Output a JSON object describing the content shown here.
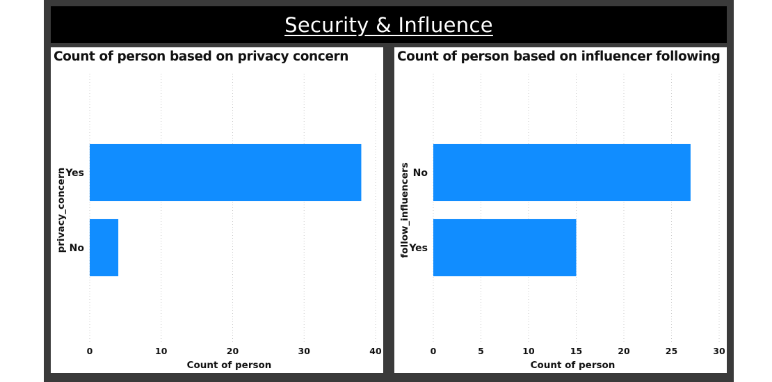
{
  "dashboard": {
    "title": "Security & Influence"
  },
  "colors": {
    "bar": "#118dff",
    "background": "#3a3a3a",
    "banner": "#000000",
    "gridline": "#c8c8c8"
  },
  "chart_data": [
    {
      "type": "bar",
      "orientation": "horizontal",
      "title": "Count of person based on privacy concern",
      "xlabel": "Count of person",
      "ylabel": "privacy_concern",
      "categories": [
        "Yes",
        "No"
      ],
      "values": [
        38,
        4
      ],
      "xlim": [
        0,
        40
      ],
      "xticks": [
        0,
        10,
        20,
        30,
        40
      ],
      "grid": "vertical dotted"
    },
    {
      "type": "bar",
      "orientation": "horizontal",
      "title": "Count of person based on influencer following",
      "xlabel": "Count of person",
      "ylabel": "follow_influencers",
      "categories": [
        "No",
        "Yes"
      ],
      "values": [
        27,
        15
      ],
      "xlim": [
        0,
        30
      ],
      "xticks": [
        0,
        5,
        10,
        15,
        20,
        25,
        30
      ],
      "grid": "vertical dotted"
    }
  ]
}
